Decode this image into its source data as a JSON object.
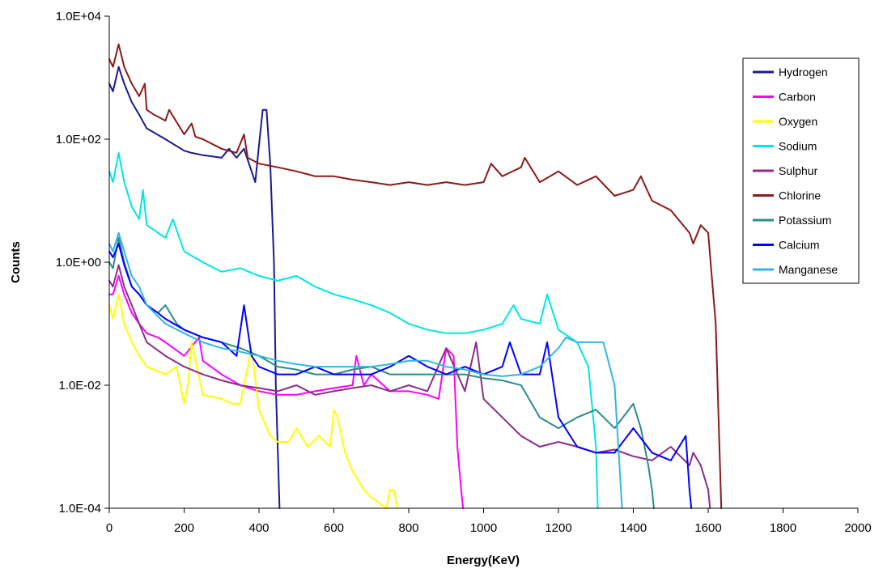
{
  "chart_data": {
    "type": "line",
    "xlabel": "Energy(KeV)",
    "ylabel": "Counts",
    "xlim": [
      0,
      2000
    ],
    "ylim": [
      0.0001,
      10000
    ],
    "yscale": "log",
    "x_ticks": [
      0,
      200,
      400,
      600,
      800,
      1000,
      1200,
      1400,
      1600,
      1800,
      2000
    ],
    "x_tick_labels": [
      "0",
      "200",
      "400",
      "600",
      "800",
      "1000",
      "1200",
      "1400",
      "1600",
      "1800",
      "2000"
    ],
    "y_ticks": [
      0.0001,
      0.01,
      1,
      100,
      10000
    ],
    "y_tick_labels": [
      "1.0E-04",
      "1.0E-02",
      "1.0E+00",
      "1.0E+02",
      "1.0E+04"
    ],
    "grid": false,
    "legend_position": "top-right",
    "series": [
      {
        "name": "Hydrogen",
        "color": "#1a1a8c",
        "x": [
          0,
          10,
          25,
          40,
          60,
          80,
          100,
          150,
          200,
          220,
          250,
          300,
          320,
          340,
          360,
          380,
          390,
          400,
          410,
          420,
          430,
          440,
          445,
          450,
          455
        ],
        "y": [
          800,
          600,
          1500,
          800,
          400,
          250,
          150,
          100,
          65,
          60,
          55,
          50,
          70,
          50,
          70,
          30,
          20,
          80,
          300,
          300,
          40,
          1,
          0.01,
          0.001,
          0.0001
        ]
      },
      {
        "name": "Carbon",
        "color": "#ff00ff",
        "x": [
          0,
          10,
          25,
          40,
          60,
          80,
          100,
          130,
          150,
          200,
          240,
          250,
          300,
          350,
          400,
          450,
          500,
          550,
          600,
          650,
          660,
          680,
          700,
          750,
          800,
          850,
          880,
          900,
          920,
          930,
          940,
          945
        ],
        "y": [
          0.3,
          0.3,
          0.6,
          0.3,
          0.15,
          0.1,
          0.07,
          0.06,
          0.05,
          0.03,
          0.06,
          0.025,
          0.015,
          0.01,
          0.008,
          0.007,
          0.007,
          0.008,
          0.009,
          0.01,
          0.03,
          0.01,
          0.015,
          0.008,
          0.008,
          0.007,
          0.006,
          0.04,
          0.03,
          0.001,
          0.0002,
          0.0001
        ]
      },
      {
        "name": "Oxygen",
        "color": "#ffff00",
        "x": [
          0,
          10,
          25,
          40,
          60,
          80,
          100,
          150,
          180,
          200,
          210,
          220,
          250,
          300,
          330,
          350,
          380,
          400,
          430,
          450,
          480,
          500,
          530,
          560,
          590,
          600,
          610,
          630,
          650,
          680,
          700,
          740,
          750,
          760,
          770
        ],
        "y": [
          0.2,
          0.12,
          0.3,
          0.1,
          0.05,
          0.03,
          0.02,
          0.015,
          0.02,
          0.005,
          0.01,
          0.05,
          0.007,
          0.006,
          0.005,
          0.005,
          0.04,
          0.004,
          0.0015,
          0.0012,
          0.0012,
          0.002,
          0.001,
          0.0015,
          0.001,
          0.004,
          0.003,
          0.0008,
          0.0004,
          0.0002,
          0.00015,
          0.0001,
          0.0002,
          0.0002,
          0.0001
        ]
      },
      {
        "name": "Sodium",
        "color": "#00e6e6",
        "x": [
          0,
          10,
          25,
          40,
          60,
          80,
          90,
          100,
          150,
          170,
          200,
          250,
          300,
          350,
          400,
          450,
          500,
          550,
          600,
          650,
          700,
          750,
          800,
          850,
          900,
          950,
          1000,
          1050,
          1080,
          1100,
          1150,
          1170,
          1200,
          1250,
          1280,
          1300,
          1305
        ],
        "y": [
          30,
          20,
          60,
          20,
          8,
          5,
          15,
          4,
          2.5,
          5,
          1.5,
          1,
          0.7,
          0.8,
          0.6,
          0.5,
          0.6,
          0.4,
          0.3,
          0.25,
          0.2,
          0.15,
          0.1,
          0.08,
          0.07,
          0.07,
          0.08,
          0.1,
          0.2,
          0.12,
          0.1,
          0.3,
          0.08,
          0.05,
          0.02,
          0.001,
          0.0001
        ]
      },
      {
        "name": "Sulphur",
        "color": "#8b2d8b",
        "x": [
          0,
          10,
          25,
          40,
          60,
          80,
          100,
          150,
          200,
          250,
          300,
          350,
          400,
          450,
          500,
          550,
          600,
          650,
          700,
          750,
          800,
          850,
          900,
          950,
          980,
          1000,
          1050,
          1100,
          1150,
          1200,
          1250,
          1300,
          1350,
          1400,
          1450,
          1500,
          1550,
          1560,
          1580,
          1600,
          1605
        ],
        "y": [
          0.5,
          0.4,
          0.9,
          0.4,
          0.2,
          0.1,
          0.05,
          0.03,
          0.02,
          0.015,
          0.012,
          0.01,
          0.009,
          0.008,
          0.01,
          0.007,
          0.008,
          0.009,
          0.01,
          0.008,
          0.01,
          0.008,
          0.04,
          0.008,
          0.05,
          0.006,
          0.003,
          0.0015,
          0.001,
          0.0012,
          0.001,
          0.0008,
          0.0009,
          0.0007,
          0.0006,
          0.001,
          0.0005,
          0.0008,
          0.0005,
          0.0002,
          0.0001
        ]
      },
      {
        "name": "Chlorine",
        "color": "#8b1a1a",
        "x": [
          0,
          10,
          25,
          40,
          60,
          80,
          95,
          100,
          120,
          150,
          160,
          200,
          220,
          230,
          250,
          300,
          340,
          360,
          370,
          400,
          450,
          500,
          550,
          600,
          650,
          700,
          750,
          800,
          850,
          900,
          950,
          1000,
          1020,
          1050,
          1100,
          1110,
          1150,
          1200,
          1250,
          1300,
          1350,
          1400,
          1420,
          1450,
          1500,
          1520,
          1550,
          1560,
          1580,
          1600,
          1620,
          1630,
          1635
        ],
        "y": [
          2000,
          1500,
          3500,
          1500,
          800,
          500,
          800,
          300,
          250,
          200,
          300,
          120,
          180,
          110,
          100,
          70,
          60,
          120,
          50,
          40,
          35,
          30,
          25,
          25,
          22,
          20,
          18,
          20,
          18,
          20,
          18,
          20,
          40,
          25,
          35,
          50,
          20,
          30,
          18,
          25,
          12,
          15,
          25,
          10,
          7,
          5,
          3,
          2,
          4,
          3,
          0.1,
          0.001,
          0.0001
        ]
      },
      {
        "name": "Potassium",
        "color": "#2e8b8b",
        "x": [
          0,
          10,
          25,
          40,
          60,
          80,
          100,
          130,
          150,
          180,
          200,
          250,
          300,
          350,
          400,
          450,
          500,
          550,
          600,
          650,
          700,
          750,
          800,
          850,
          900,
          950,
          1000,
          1050,
          1100,
          1150,
          1200,
          1250,
          1300,
          1350,
          1400,
          1420,
          1440,
          1450,
          1455
        ],
        "y": [
          1,
          0.8,
          2.5,
          1,
          0.4,
          0.3,
          0.2,
          0.15,
          0.2,
          0.1,
          0.08,
          0.06,
          0.05,
          0.04,
          0.03,
          0.02,
          0.018,
          0.015,
          0.015,
          0.018,
          0.02,
          0.015,
          0.015,
          0.015,
          0.015,
          0.015,
          0.013,
          0.012,
          0.01,
          0.003,
          0.002,
          0.003,
          0.004,
          0.002,
          0.005,
          0.002,
          0.0005,
          0.0002,
          0.0001
        ]
      },
      {
        "name": "Calcium",
        "color": "#0000ff",
        "x": [
          0,
          10,
          25,
          40,
          60,
          80,
          100,
          130,
          150,
          200,
          250,
          300,
          340,
          360,
          380,
          400,
          450,
          500,
          550,
          600,
          650,
          700,
          750,
          800,
          850,
          900,
          950,
          1000,
          1050,
          1070,
          1100,
          1150,
          1170,
          1200,
          1250,
          1300,
          1350,
          1400,
          1450,
          1500,
          1540,
          1550,
          1555
        ],
        "y": [
          1.5,
          1.2,
          2,
          0.9,
          0.4,
          0.3,
          0.2,
          0.15,
          0.12,
          0.08,
          0.06,
          0.05,
          0.03,
          0.2,
          0.03,
          0.02,
          0.015,
          0.015,
          0.02,
          0.015,
          0.015,
          0.015,
          0.02,
          0.03,
          0.02,
          0.015,
          0.02,
          0.015,
          0.02,
          0.05,
          0.015,
          0.015,
          0.05,
          0.003,
          0.001,
          0.0008,
          0.0008,
          0.002,
          0.0008,
          0.0006,
          0.0015,
          0.0002,
          0.0001
        ]
      },
      {
        "name": "Manganese",
        "color": "#33b5e5",
        "x": [
          0,
          10,
          25,
          40,
          60,
          80,
          100,
          150,
          200,
          250,
          300,
          350,
          400,
          450,
          500,
          550,
          600,
          650,
          700,
          750,
          800,
          850,
          900,
          950,
          1000,
          1050,
          1100,
          1150,
          1200,
          1220,
          1250,
          1300,
          1320,
          1350,
          1360,
          1370
        ],
        "y": [
          2,
          1.5,
          3,
          1.5,
          0.6,
          0.4,
          0.2,
          0.1,
          0.07,
          0.05,
          0.04,
          0.035,
          0.03,
          0.025,
          0.022,
          0.02,
          0.02,
          0.02,
          0.02,
          0.022,
          0.025,
          0.025,
          0.02,
          0.018,
          0.015,
          0.014,
          0.015,
          0.02,
          0.04,
          0.06,
          0.05,
          0.05,
          0.05,
          0.01,
          0.001,
          0.0001
        ]
      }
    ]
  }
}
